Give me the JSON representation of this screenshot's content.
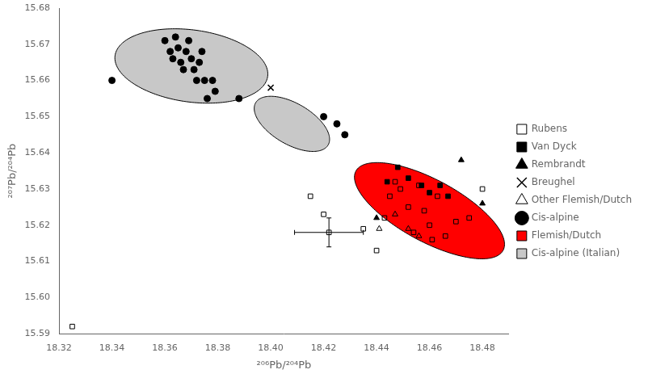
{
  "chart_data": {
    "type": "scatter",
    "xlabel": "²⁰⁶Pb/²⁰⁴Pb",
    "ylabel": "²⁰⁷Pb/²⁰⁴Pb",
    "xlim": [
      18.32,
      18.49
    ],
    "ylim": [
      15.59,
      15.68
    ],
    "xticks": [
      18.32,
      18.34,
      18.36,
      18.38,
      {
        "value": 18.4,
        "label": "18.40"
      },
      18.42,
      18.44,
      18.46,
      18.48
    ],
    "yticks": [
      15.59,
      {
        "value": 15.6,
        "label": "15.60"
      },
      15.61,
      15.62,
      15.63,
      15.64,
      15.65,
      15.66,
      15.67,
      15.68
    ],
    "grid": false,
    "legend": "right",
    "series": [
      {
        "name": "Rubens",
        "marker": "square-open",
        "color": "#000000",
        "values": [
          [
            18.325,
            15.592
          ],
          [
            18.415,
            15.628
          ],
          [
            18.42,
            15.623
          ],
          [
            18.435,
            15.619
          ],
          [
            18.44,
            15.613
          ],
          [
            18.443,
            15.622
          ],
          [
            18.445,
            15.628
          ],
          [
            18.447,
            15.632
          ],
          [
            18.449,
            15.63
          ],
          [
            18.452,
            15.625
          ],
          [
            18.454,
            15.618
          ],
          [
            18.456,
            15.631
          ],
          [
            18.458,
            15.624
          ],
          [
            18.46,
            15.62
          ],
          [
            18.461,
            15.616
          ],
          [
            18.463,
            15.628
          ],
          [
            18.466,
            15.617
          ],
          [
            18.47,
            15.621
          ],
          [
            18.475,
            15.622
          ],
          [
            18.48,
            15.63
          ]
        ]
      },
      {
        "name": "Van Dyck",
        "marker": "square",
        "color": "#000000",
        "values": [
          [
            18.444,
            15.632
          ],
          [
            18.448,
            15.636
          ],
          [
            18.452,
            15.633
          ],
          [
            18.457,
            15.631
          ],
          [
            18.46,
            15.629
          ],
          [
            18.464,
            15.631
          ],
          [
            18.467,
            15.628
          ]
        ]
      },
      {
        "name": "Rembrandt",
        "marker": "triangle",
        "color": "#000000",
        "values": [
          [
            18.44,
            15.622
          ],
          [
            18.472,
            15.638
          ],
          [
            18.48,
            15.626
          ]
        ]
      },
      {
        "name": "Breughel",
        "marker": "cross",
        "color": "#000000",
        "values": [
          [
            18.4,
            15.658
          ]
        ]
      },
      {
        "name": "Other Flemish/Dutch",
        "marker": "triangle-open",
        "color": "#000000",
        "values": [
          [
            18.441,
            15.619
          ],
          [
            18.447,
            15.623
          ],
          [
            18.452,
            15.619
          ],
          [
            18.456,
            15.617
          ]
        ]
      },
      {
        "name": "Cis-alpine",
        "marker": "circle",
        "color": "#000000",
        "values": [
          [
            18.34,
            15.66
          ],
          [
            18.36,
            15.671
          ],
          [
            18.362,
            15.668
          ],
          [
            18.363,
            15.666
          ],
          [
            18.364,
            15.672
          ],
          [
            18.365,
            15.669
          ],
          [
            18.366,
            15.665
          ],
          [
            18.367,
            15.663
          ],
          [
            18.368,
            15.668
          ],
          [
            18.369,
            15.671
          ],
          [
            18.37,
            15.666
          ],
          [
            18.371,
            15.663
          ],
          [
            18.372,
            15.66
          ],
          [
            18.373,
            15.665
          ],
          [
            18.374,
            15.668
          ],
          [
            18.375,
            15.66
          ],
          [
            18.376,
            15.655
          ],
          [
            18.378,
            15.66
          ],
          [
            18.379,
            15.657
          ],
          [
            18.388,
            15.655
          ],
          [
            18.42,
            15.65
          ],
          [
            18.425,
            15.648
          ],
          [
            18.428,
            15.645
          ]
        ]
      },
      {
        "marker": "square-open",
        "color": "#000000",
        "values": [
          [
            18.422,
            15.618
          ]
        ],
        "xerr": [
          0.013
        ],
        "yerr": [
          0.004
        ]
      }
    ],
    "regions": [
      {
        "name": "Flemish/Dutch",
        "color": "#ff0000",
        "ellipses": [
          {
            "x": 18.46,
            "y": 15.624,
            "width": 0.06,
            "height": 0.018,
            "angle": -20
          }
        ]
      },
      {
        "name": "Cis-alpine (Italian)",
        "color": "#c8c8c8",
        "ellipses": [
          {
            "x": 18.37,
            "y": 15.664,
            "width": 0.058,
            "height": 0.02,
            "angle": -5
          },
          {
            "x": 18.408,
            "y": 15.648,
            "width": 0.03,
            "height": 0.012,
            "angle": -20
          }
        ]
      }
    ]
  }
}
